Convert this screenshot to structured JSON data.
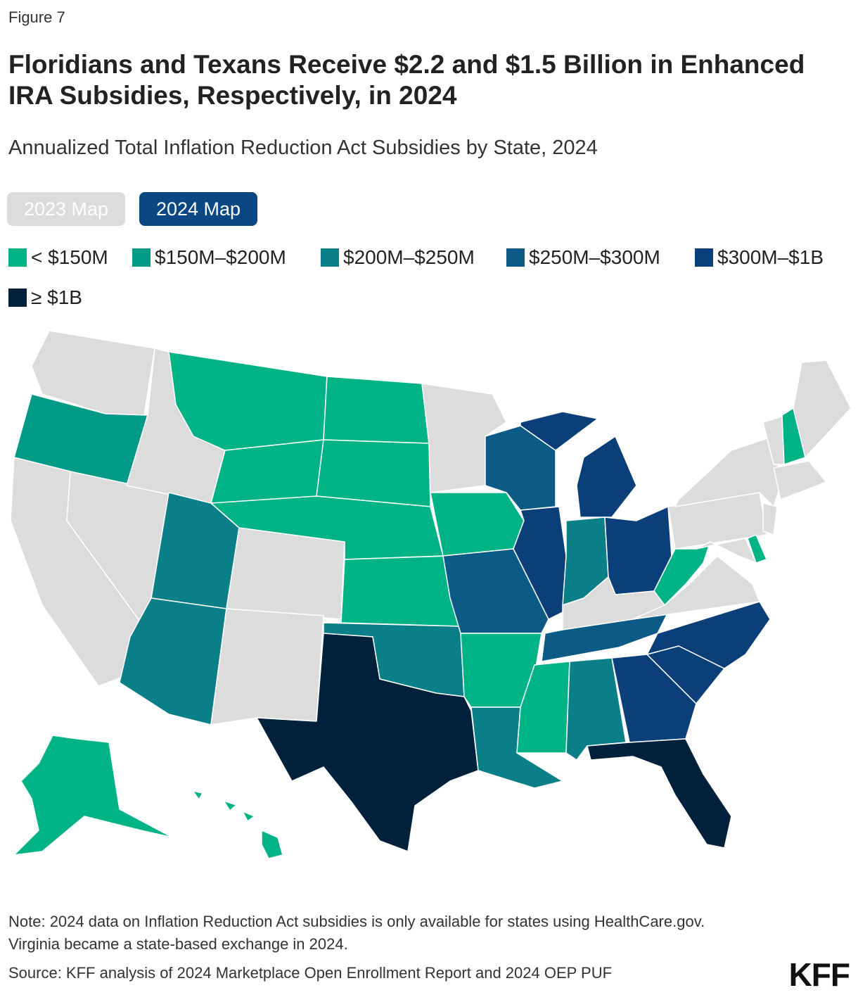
{
  "figure_label": "Figure 7",
  "title": "Floridians and Texans Receive $2.2 and $1.5 Billion in Enhanced IRA Subsidies, Respectively, in 2024",
  "subtitle": "Annualized Total Inflation Reduction Act Subsidies by State, 2024",
  "toggles": [
    {
      "label": "2023 Map",
      "active": false
    },
    {
      "label": "2024 Map",
      "active": true
    }
  ],
  "legend": [
    {
      "label": "< $150M",
      "color": "#00b386"
    },
    {
      "label": "$150M–$200M",
      "color": "#009a87"
    },
    {
      "label": "$200M–$250M",
      "color": "#0a7f88"
    },
    {
      "label": "$250M–$300M",
      "color": "#0b5b86"
    },
    {
      "label": "$300M–$1B",
      "color": "#0b3f7a"
    },
    {
      "label": "≥ $1B",
      "color": "#00203b"
    }
  ],
  "no_data_color": "#dcdcdc",
  "chart_data": {
    "type": "map",
    "title": "Floridians and Texans Receive $2.2 and $1.5 Billion in Enhanced IRA Subsidies, Respectively, in 2024",
    "subtitle": "Annualized Total Inflation Reduction Act Subsidies by State, 2024",
    "state_bins": {
      "TX": "≥ $1B",
      "FL": "≥ $1B",
      "MI": "$300M–$1B",
      "IL": "$300M–$1B",
      "OH": "$300M–$1B",
      "NC": "$300M–$1B",
      "SC": "$300M–$1B",
      "GA": "$300M–$1B",
      "WI": "$250M–$300M",
      "MO": "$250M–$300M",
      "TN": "$250M–$300M",
      "UT": "$200M–$250M",
      "AZ": "$200M–$250M",
      "IN": "$200M–$250M",
      "OK": "$200M–$250M",
      "AL": "$200M–$250M",
      "LA": "$200M–$250M",
      "OR": "$150M–$200M",
      "MT": "< $150M",
      "WY": "< $150M",
      "ND": "< $150M",
      "SD": "< $150M",
      "NE": "< $150M",
      "KS": "< $150M",
      "IA": "< $150M",
      "AR": "< $150M",
      "MS": "< $150M",
      "WV": "< $150M",
      "NH": "< $150M",
      "DE": "< $150M",
      "AK": "< $150M",
      "HI": "< $150M"
    }
  },
  "note": "Note: 2024 data on Inflation Reduction Act subsidies is only available for states using HealthCare.gov. Virginia became a state-based exchange in 2024.",
  "source": "Source: KFF analysis of 2024 Marketplace Open Enrollment Report and 2024 OEP PUF",
  "logo": "KFF"
}
